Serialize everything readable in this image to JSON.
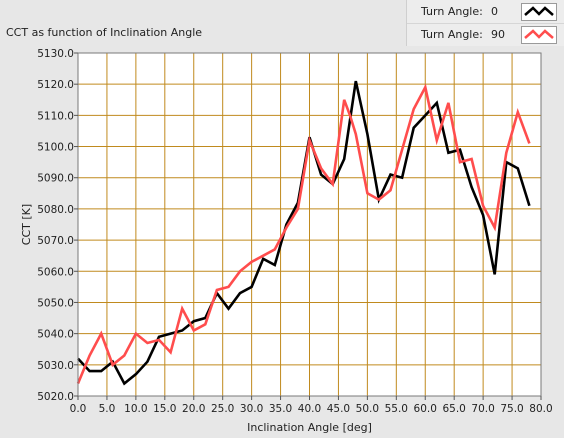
{
  "panel": {
    "title": "CCT as function of Inclination Angle"
  },
  "legend": {
    "items": [
      {
        "label": "Turn Angle:",
        "value": "0",
        "color": "#000000"
      },
      {
        "label": "Turn Angle:",
        "value": "90",
        "color": "#ff4d4d"
      }
    ]
  },
  "chart_data": {
    "type": "line",
    "xlabel": "Inclination Angle [deg]",
    "ylabel": "CCT [K]",
    "xlim": [
      0,
      80
    ],
    "ylim": [
      5020,
      5130
    ],
    "xticks": [
      0,
      5,
      10,
      15,
      20,
      25,
      30,
      35,
      40,
      45,
      50,
      55,
      60,
      65,
      70,
      75,
      80
    ],
    "yticks": [
      5020,
      5030,
      5040,
      5050,
      5060,
      5070,
      5080,
      5090,
      5100,
      5110,
      5120,
      5130
    ],
    "xtick_labels": [
      "0.0",
      "5.0",
      "10.0",
      "15.0",
      "20.0",
      "25.0",
      "30.0",
      "35.0",
      "40.0",
      "45.0",
      "50.0",
      "55.0",
      "60.0",
      "65.0",
      "70.0",
      "75.0",
      "80.0"
    ],
    "ytick_labels": [
      "5020.0",
      "5030.0",
      "5040.0",
      "5050.0",
      "5060.0",
      "5070.0",
      "5080.0",
      "5090.0",
      "5100.0",
      "5110.0",
      "5120.0",
      "5130.0"
    ],
    "grid": true,
    "grid_color": "#c08a1e",
    "plot_background": "#ffffff",
    "series": [
      {
        "legend_index": 0,
        "color": "#000000",
        "x": [
          0,
          2,
          4,
          6,
          8,
          10,
          12,
          14,
          16,
          18,
          20,
          22,
          24,
          26,
          28,
          30,
          32,
          34,
          36,
          38,
          40,
          42,
          44,
          46,
          48,
          50,
          52,
          54,
          56,
          58,
          60,
          62,
          64,
          66,
          68,
          70,
          72,
          74,
          76,
          78
        ],
        "y": [
          5032,
          5028,
          5028,
          5031,
          5024,
          5027,
          5031,
          5039,
          5040,
          5041,
          5044,
          5045,
          5053,
          5048,
          5053,
          5055,
          5064,
          5062,
          5075,
          5082,
          5103,
          5091,
          5088,
          5096,
          5121,
          5104,
          5083,
          5091,
          5090,
          5106,
          5110,
          5114,
          5098,
          5099,
          5087,
          5078,
          5059,
          5095,
          5093,
          5081
        ]
      },
      {
        "legend_index": 1,
        "color": "#ff4d4d",
        "x": [
          0,
          2,
          4,
          6,
          8,
          10,
          12,
          14,
          16,
          18,
          20,
          22,
          24,
          26,
          28,
          30,
          32,
          34,
          36,
          38,
          40,
          42,
          44,
          46,
          47,
          48,
          50,
          52,
          54,
          56,
          58,
          60,
          62,
          64,
          66,
          68,
          70,
          72,
          74,
          76,
          78
        ],
        "y": [
          5024,
          5033,
          5040,
          5030,
          5033,
          5040,
          5037,
          5038,
          5034,
          5048,
          5041,
          5043,
          5054,
          5055,
          5060,
          5063,
          5065,
          5067,
          5074,
          5080,
          5102,
          5093,
          5088,
          5115,
          5110,
          5104,
          5085,
          5083,
          5086,
          5099,
          5112,
          5119,
          5102,
          5114,
          5095,
          5096,
          5081,
          5074,
          5098,
          5111,
          5101
        ]
      }
    ]
  }
}
